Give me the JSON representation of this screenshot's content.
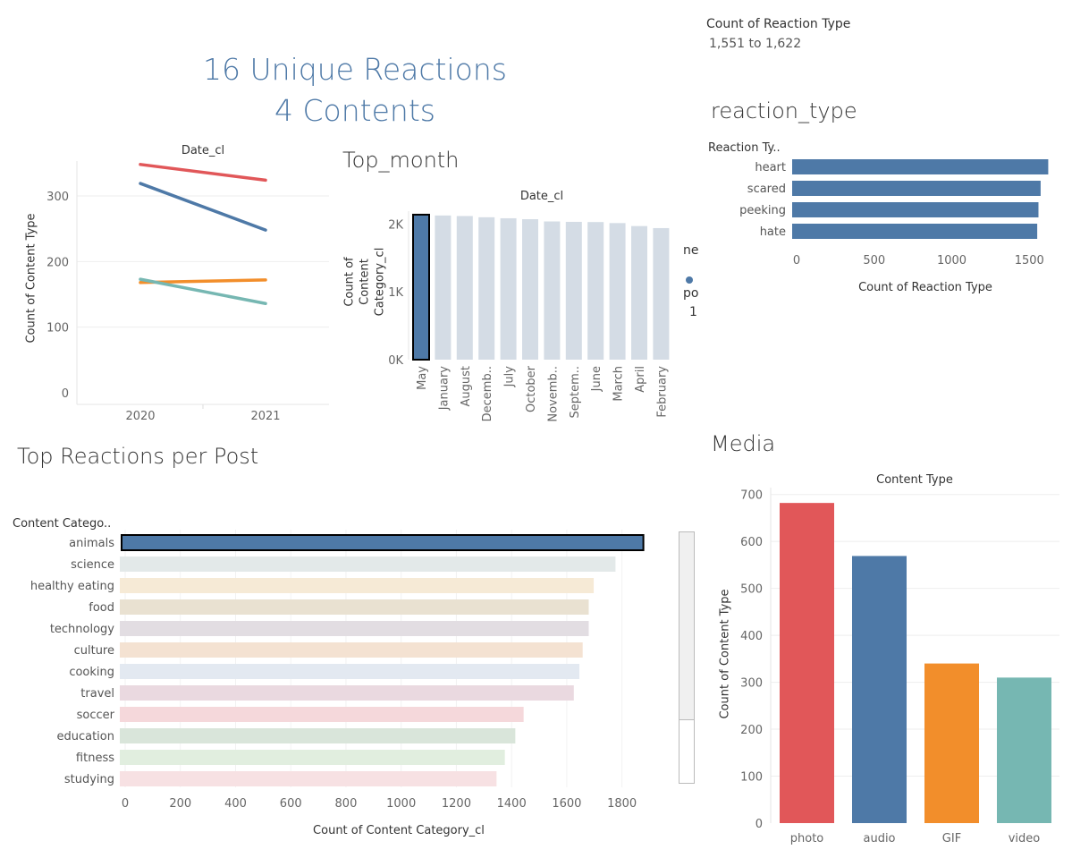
{
  "kpi": {
    "line1": "16 Unique Reactions",
    "line2": "4 Contents"
  },
  "legend_reaction": {
    "title": "Count of Reaction Type",
    "range": "1,551 to 1,622"
  },
  "clipped_legend": {
    "t1": "ne",
    "t2": "po",
    "t3": "1"
  },
  "colors": {
    "blue": "#4e79a7",
    "red": "#e15759",
    "orange": "#f28e2b",
    "teal": "#76b7b2",
    "light": "#d4dce5",
    "grid": "#eeeeee"
  },
  "chart_data": [
    {
      "id": "date_lines",
      "type": "line",
      "title": "Date_cl",
      "ylabel": "Count of Content Type",
      "x": [
        "2020",
        "2021"
      ],
      "ylim": [
        0,
        370
      ],
      "yticks": [
        0,
        100,
        200,
        300
      ],
      "series": [
        {
          "values": [
            348,
            324
          ],
          "color": "#e15759"
        },
        {
          "values": [
            319,
            248
          ],
          "color": "#4e79a7"
        },
        {
          "values": [
            168,
            172
          ],
          "color": "#f28e2b"
        },
        {
          "values": [
            173,
            136
          ],
          "color": "#76b7b2"
        }
      ]
    },
    {
      "id": "top_month",
      "type": "bar",
      "sheet_title": "Top_month",
      "title": "Date_cl",
      "ylabel": "Count of Content Category_cl",
      "categories": [
        "May",
        "January",
        "August",
        "Decemb..",
        "July",
        "October",
        "Novemb..",
        "Septem..",
        "June",
        "March",
        "April",
        "February"
      ],
      "values": [
        2138,
        2126,
        2118,
        2100,
        2085,
        2071,
        2038,
        2032,
        2029,
        2014,
        1970,
        1940
      ],
      "highlight": "May",
      "ylim": [
        0,
        2150
      ],
      "yticks": [
        {
          "v": 0,
          "label": "0K"
        },
        {
          "v": 1000,
          "label": "1K"
        },
        {
          "v": 2000,
          "label": "2K"
        }
      ]
    },
    {
      "id": "reaction_type",
      "type": "bar",
      "sheet_title": "reaction_type",
      "header": "Reaction Ty..",
      "xlabel": "Count of Reaction Type",
      "categories": [
        "heart",
        "scared",
        "peeking",
        "hate"
      ],
      "values": [
        1622,
        1573,
        1559,
        1551
      ],
      "xlim": [
        0,
        1650
      ],
      "xticks": [
        0,
        500,
        1000,
        1500
      ]
    },
    {
      "id": "top_reactions",
      "type": "bar",
      "sheet_title": "Top Reactions per Post",
      "header": "Content Catego..",
      "xlabel": "Count of Content Category_cl",
      "categories": [
        "animals",
        "science",
        "healthy eating",
        "food",
        "technology",
        "culture",
        "cooking",
        "travel",
        "soccer",
        "education",
        "fitness",
        "studying"
      ],
      "values": [
        1897,
        1796,
        1717,
        1699,
        1699,
        1677,
        1665,
        1645,
        1463,
        1433,
        1395,
        1365
      ],
      "colors": [
        "#4e79a7",
        "#e3e9e9",
        "#f6ead6",
        "#e9e1d1",
        "#e2dde2",
        "#f4e2d2",
        "#e3e9f1",
        "#ead9e0",
        "#f5d8db",
        "#d9e5da",
        "#e1eedf",
        "#f7e1e3"
      ],
      "xlim": [
        0,
        1920
      ],
      "xticks": [
        0,
        200,
        400,
        600,
        800,
        1000,
        1200,
        1400,
        1600,
        1800
      ]
    },
    {
      "id": "media",
      "type": "bar",
      "sheet_title": "Media",
      "title": "Content Type",
      "ylabel": "Count of Content Type",
      "categories": [
        "photo",
        "audio",
        "GIF",
        "video"
      ],
      "values": [
        682,
        569,
        340,
        310
      ],
      "colors": [
        "#e15759",
        "#4e79a7",
        "#f28e2b",
        "#76b7b2"
      ],
      "ylim": [
        0,
        705
      ],
      "yticks": [
        0,
        100,
        200,
        300,
        400,
        500,
        600,
        700
      ]
    }
  ]
}
